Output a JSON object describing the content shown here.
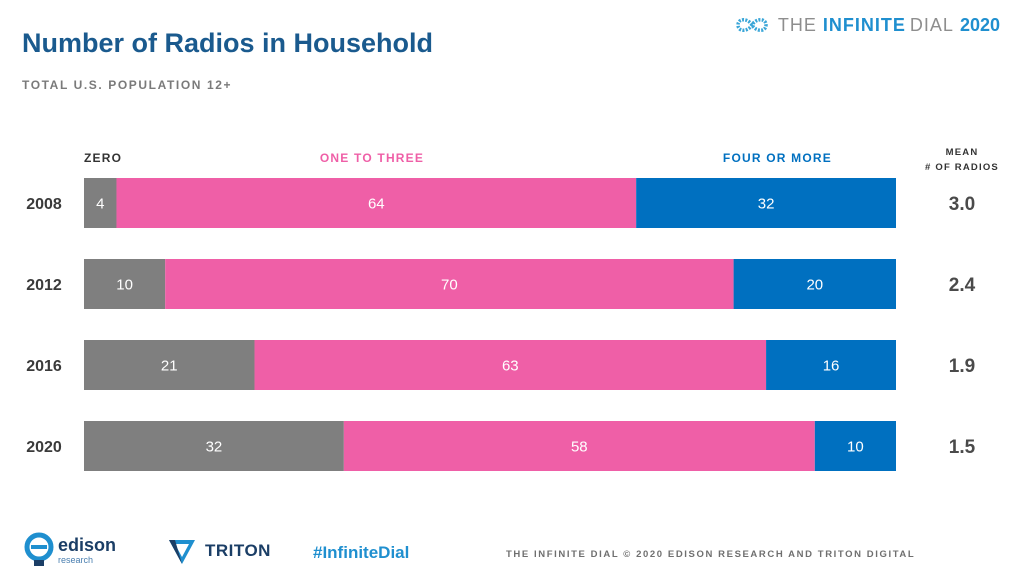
{
  "header": {
    "title": "Number of Radios in Household",
    "subtitle": "TOTAL U.S. POPULATION 12+",
    "brand_the": "THE",
    "brand_infinite": "INFINITE",
    "brand_dial": "DIAL",
    "brand_year": "2020",
    "brand_icon": "infinity-icon",
    "brand_color": "#1f8fcf"
  },
  "chart_data": {
    "type": "bar",
    "orientation": "horizontal",
    "stacked": true,
    "categories": [
      "2008",
      "2012",
      "2016",
      "2020"
    ],
    "series": [
      {
        "name": "ZERO",
        "values": [
          4,
          10,
          21,
          32
        ],
        "color": "#7f7f7f"
      },
      {
        "name": "ONE TO THREE",
        "values": [
          64,
          70,
          63,
          58
        ],
        "color": "#ef5fa7"
      },
      {
        "name": "FOUR OR MORE",
        "values": [
          32,
          20,
          16,
          10
        ],
        "color": "#0070c0"
      }
    ],
    "legend_placement": "top",
    "mean_header": [
      "MEAN",
      "# OF RADIOS"
    ],
    "mean_values": [
      "3.0",
      "2.4",
      "1.9",
      "1.5"
    ],
    "xlim": [
      0,
      100
    ],
    "grid": false
  },
  "footer": {
    "hashtag": "#InfiniteDial",
    "copyright": "THE INFINITE DIAL   © 2020 EDISON RESEARCH AND TRITON DIGITAL",
    "edison_name": "edison",
    "edison_sub": "research",
    "edison_icon": "edison-logo-icon",
    "triton_name": "TRITON",
    "triton_icon": "triton-logo-icon"
  }
}
